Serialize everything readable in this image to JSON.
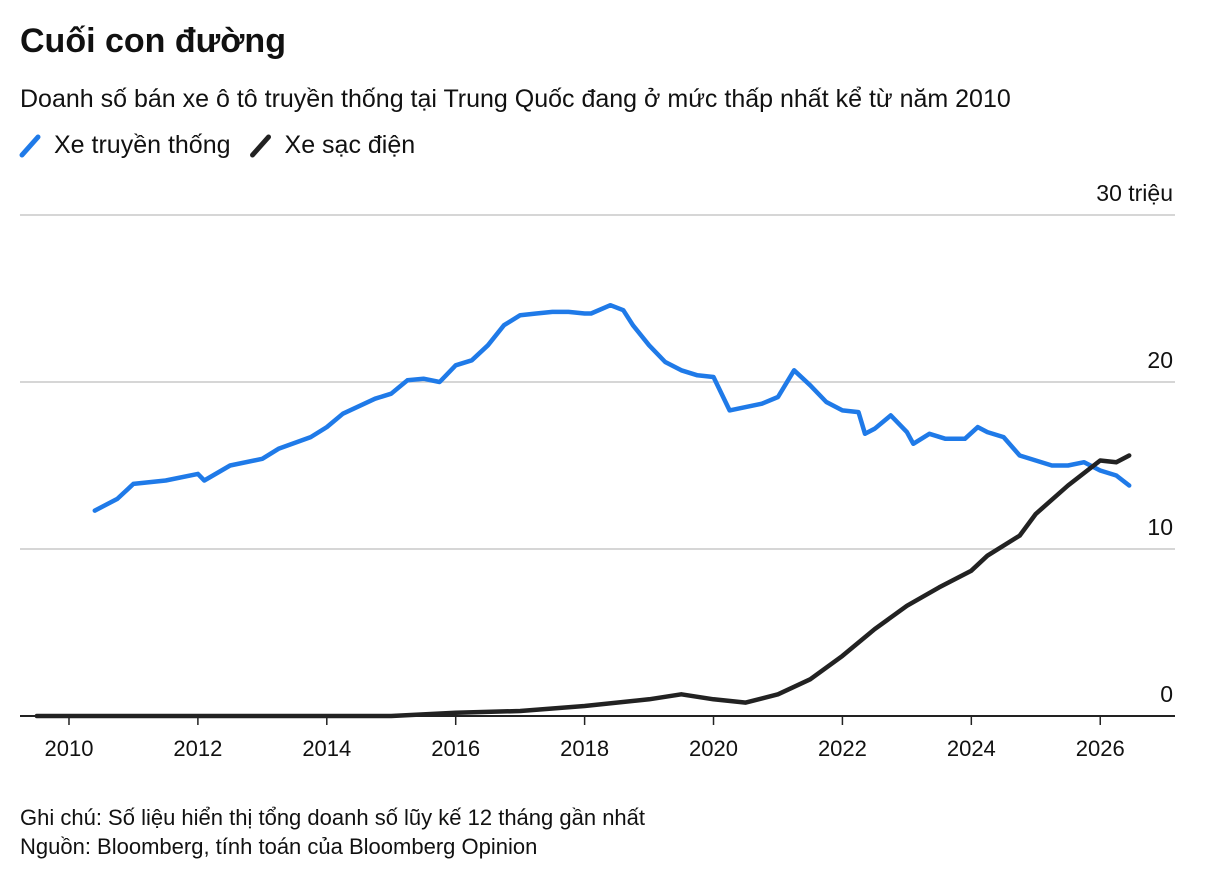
{
  "chart_data": {
    "type": "line",
    "title": "Cuối con đường",
    "subtitle": "Doanh số bán xe ô tô truyền thống tại Trung Quốc đang ở mức thấp nhất kể từ năm 2010",
    "note": "Ghi chú: Số liệu hiển thị tổng doanh số lũy kế 12 tháng gần nhất",
    "source": "Nguồn: Bloomberg, tính toán của Bloomberg Opinion",
    "xlim": [
      2009.24,
      2027.16
    ],
    "xticks": [
      2010,
      2012,
      2014,
      2016,
      2018,
      2020,
      2022,
      2024,
      2026
    ],
    "ylim": [
      0,
      30
    ],
    "yticks": [
      0,
      10,
      20,
      {
        "value": 30,
        "label": "30 triệu"
      }
    ],
    "grid": true,
    "series": [
      {
        "name": "Xe truyền thống",
        "color": "#1f7ae8",
        "x": [
          2010.4,
          2010.75,
          2011.0,
          2011.5,
          2012.0,
          2012.1,
          2012.5,
          2013.0,
          2013.25,
          2013.75,
          2014.0,
          2014.25,
          2014.75,
          2015.0,
          2015.25,
          2015.5,
          2015.75,
          2016.0,
          2016.25,
          2016.5,
          2016.75,
          2017.0,
          2017.25,
          2017.5,
          2017.75,
          2018.0,
          2018.1,
          2018.4,
          2018.6,
          2018.75,
          2019.0,
          2019.25,
          2019.5,
          2019.75,
          2020.0,
          2020.25,
          2020.5,
          2020.75,
          2021.0,
          2021.25,
          2021.5,
          2021.75,
          2022.0,
          2022.25,
          2022.35,
          2022.5,
          2022.75,
          2023.0,
          2023.1,
          2023.35,
          2023.6,
          2023.9,
          2024.1,
          2024.25,
          2024.5,
          2024.75,
          2025.0,
          2025.25,
          2025.5,
          2025.75,
          2026.0,
          2026.25,
          2026.45
        ],
        "values": [
          12.3,
          13.0,
          13.9,
          14.1,
          14.5,
          14.1,
          15.0,
          15.4,
          16.0,
          16.7,
          17.3,
          18.1,
          19.0,
          19.3,
          20.1,
          20.2,
          20.0,
          21.0,
          21.3,
          22.2,
          23.4,
          24.0,
          24.1,
          24.2,
          24.2,
          24.1,
          24.1,
          24.6,
          24.3,
          23.4,
          22.2,
          21.2,
          20.7,
          20.4,
          20.3,
          18.3,
          18.5,
          18.7,
          19.1,
          20.7,
          19.8,
          18.8,
          18.3,
          18.2,
          16.9,
          17.2,
          18.0,
          17.0,
          16.3,
          16.9,
          16.6,
          16.6,
          17.3,
          17.0,
          16.7,
          15.6,
          15.3,
          15.0,
          15.0,
          15.2,
          14.7,
          14.4,
          13.8
        ]
      },
      {
        "name": "Xe sạc điện",
        "color": "#222222",
        "x": [
          2009.5,
          2015.0,
          2016.0,
          2017.0,
          2018.0,
          2019.0,
          2019.5,
          2020.0,
          2020.5,
          2021.0,
          2021.5,
          2022.0,
          2022.5,
          2023.0,
          2023.5,
          2024.0,
          2024.25,
          2024.75,
          2025.0,
          2025.5,
          2026.0,
          2026.25,
          2026.45
        ],
        "values": [
          0,
          0,
          0.2,
          0.3,
          0.6,
          1.0,
          1.3,
          1.0,
          0.8,
          1.3,
          2.2,
          3.6,
          5.2,
          6.6,
          7.7,
          8.7,
          9.6,
          10.8,
          12.1,
          13.8,
          15.3,
          15.2,
          15.6
        ]
      }
    ]
  }
}
